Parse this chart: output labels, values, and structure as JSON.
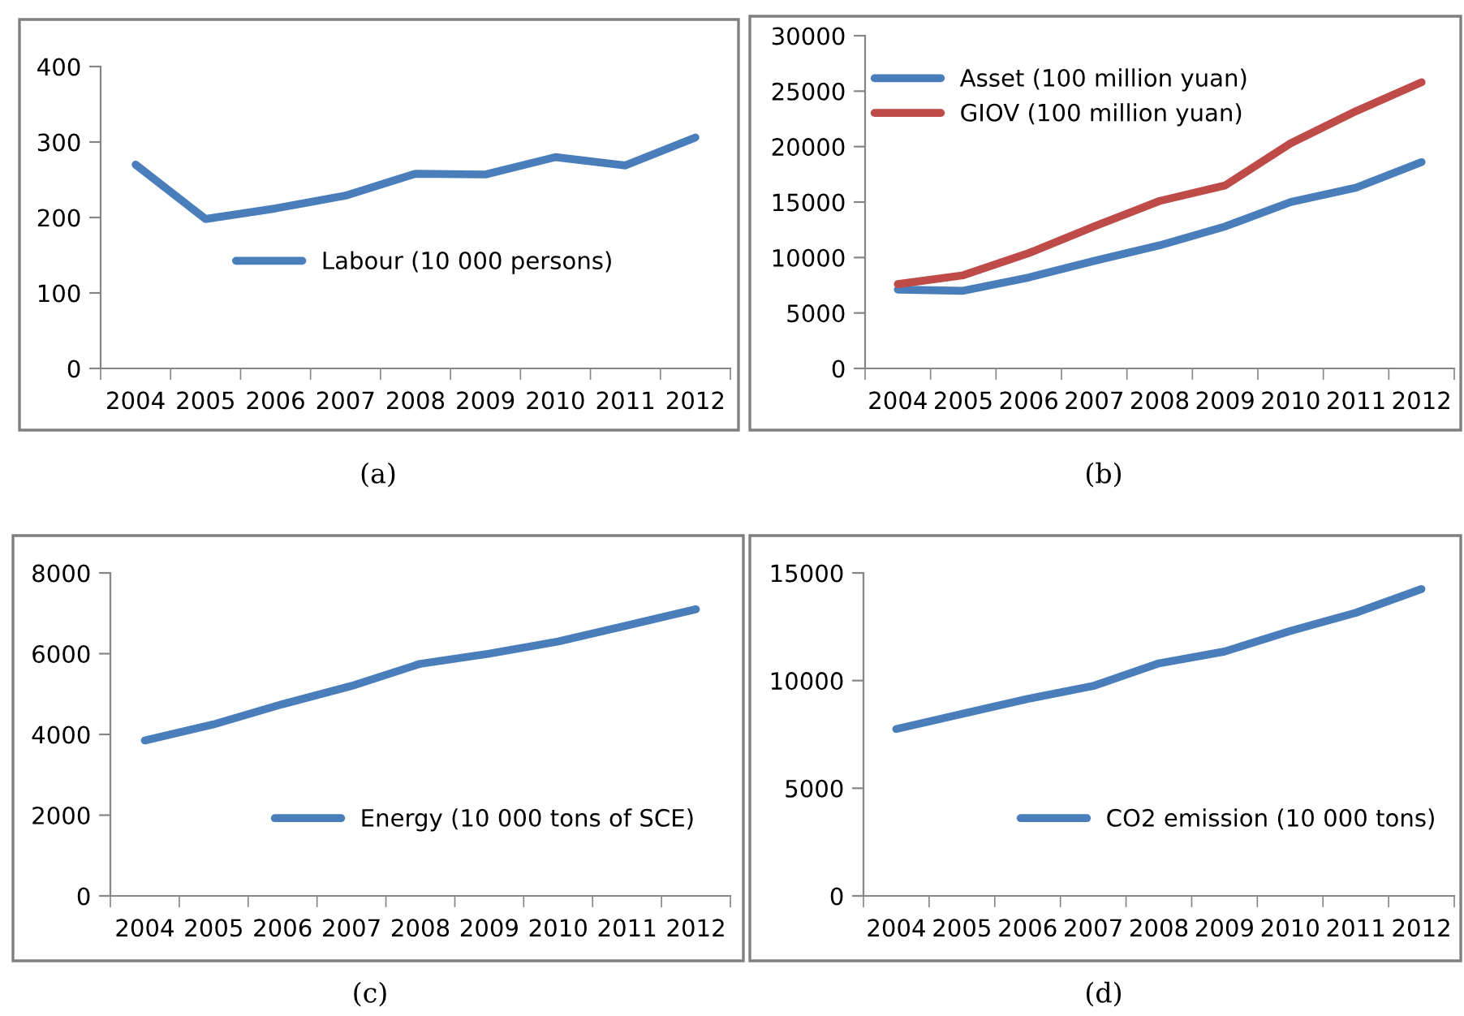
{
  "chart_data": [
    {
      "type": "line",
      "categories": [
        "2004",
        "2005",
        "2006",
        "2007",
        "2008",
        "2009",
        "2010",
        "2011",
        "2012"
      ],
      "series": [
        {
          "name": "Labour (10 000 persons)",
          "color": "#4a7ebb",
          "values": [
            270,
            198,
            212,
            229,
            258,
            257,
            280,
            269,
            306
          ]
        }
      ],
      "ylim": [
        0,
        400
      ],
      "yticks": [
        0,
        100,
        200,
        300,
        400
      ],
      "legend": "center",
      "grid": false,
      "annotations": [
        "(a)"
      ]
    },
    {
      "type": "line",
      "categories": [
        "2004",
        "2005",
        "2006",
        "2007",
        "2008",
        "2009",
        "2010",
        "2011",
        "2012"
      ],
      "series": [
        {
          "name": "Asset (100 million yuan)",
          "color": "#4a7ebb",
          "values": [
            7100,
            7000,
            8200,
            9700,
            11100,
            12800,
            15000,
            16300,
            18600
          ]
        },
        {
          "name": "GIOV (100 million yuan)",
          "color": "#be4b48",
          "values": [
            7600,
            8400,
            10400,
            12800,
            15100,
            16500,
            20300,
            23200,
            25800
          ]
        }
      ],
      "ylim": [
        0,
        30000
      ],
      "yticks": [
        0,
        5000,
        10000,
        15000,
        20000,
        25000,
        30000
      ],
      "legend": "top left",
      "grid": false,
      "annotations": [
        "(b)"
      ]
    },
    {
      "type": "line",
      "categories": [
        "2004",
        "2005",
        "2006",
        "2007",
        "2008",
        "2009",
        "2010",
        "2011",
        "2012"
      ],
      "series": [
        {
          "name": "Energy (10 000 tons of SCE)",
          "color": "#4a7ebb",
          "values": [
            3850,
            4250,
            4750,
            5200,
            5750,
            6000,
            6300,
            6700,
            7100
          ]
        }
      ],
      "ylim": [
        0,
        8000
      ],
      "yticks": [
        0,
        2000,
        4000,
        6000,
        8000
      ],
      "legend": "bottom",
      "grid": false,
      "annotations": [
        "(c)"
      ]
    },
    {
      "type": "line",
      "categories": [
        "2004",
        "2005",
        "2006",
        "2007",
        "2008",
        "2009",
        "2010",
        "2011",
        "2012"
      ],
      "series": [
        {
          "name": "CO2 emission (10 000 tons)",
          "color": "#4a7ebb",
          "values": [
            7750,
            8450,
            9150,
            9750,
            10800,
            11350,
            12300,
            13150,
            14250
          ]
        }
      ],
      "ylim": [
        0,
        15000
      ],
      "yticks": [
        0,
        5000,
        10000,
        15000
      ],
      "legend": "bottom",
      "grid": false,
      "annotations": [
        "(d)"
      ]
    }
  ]
}
